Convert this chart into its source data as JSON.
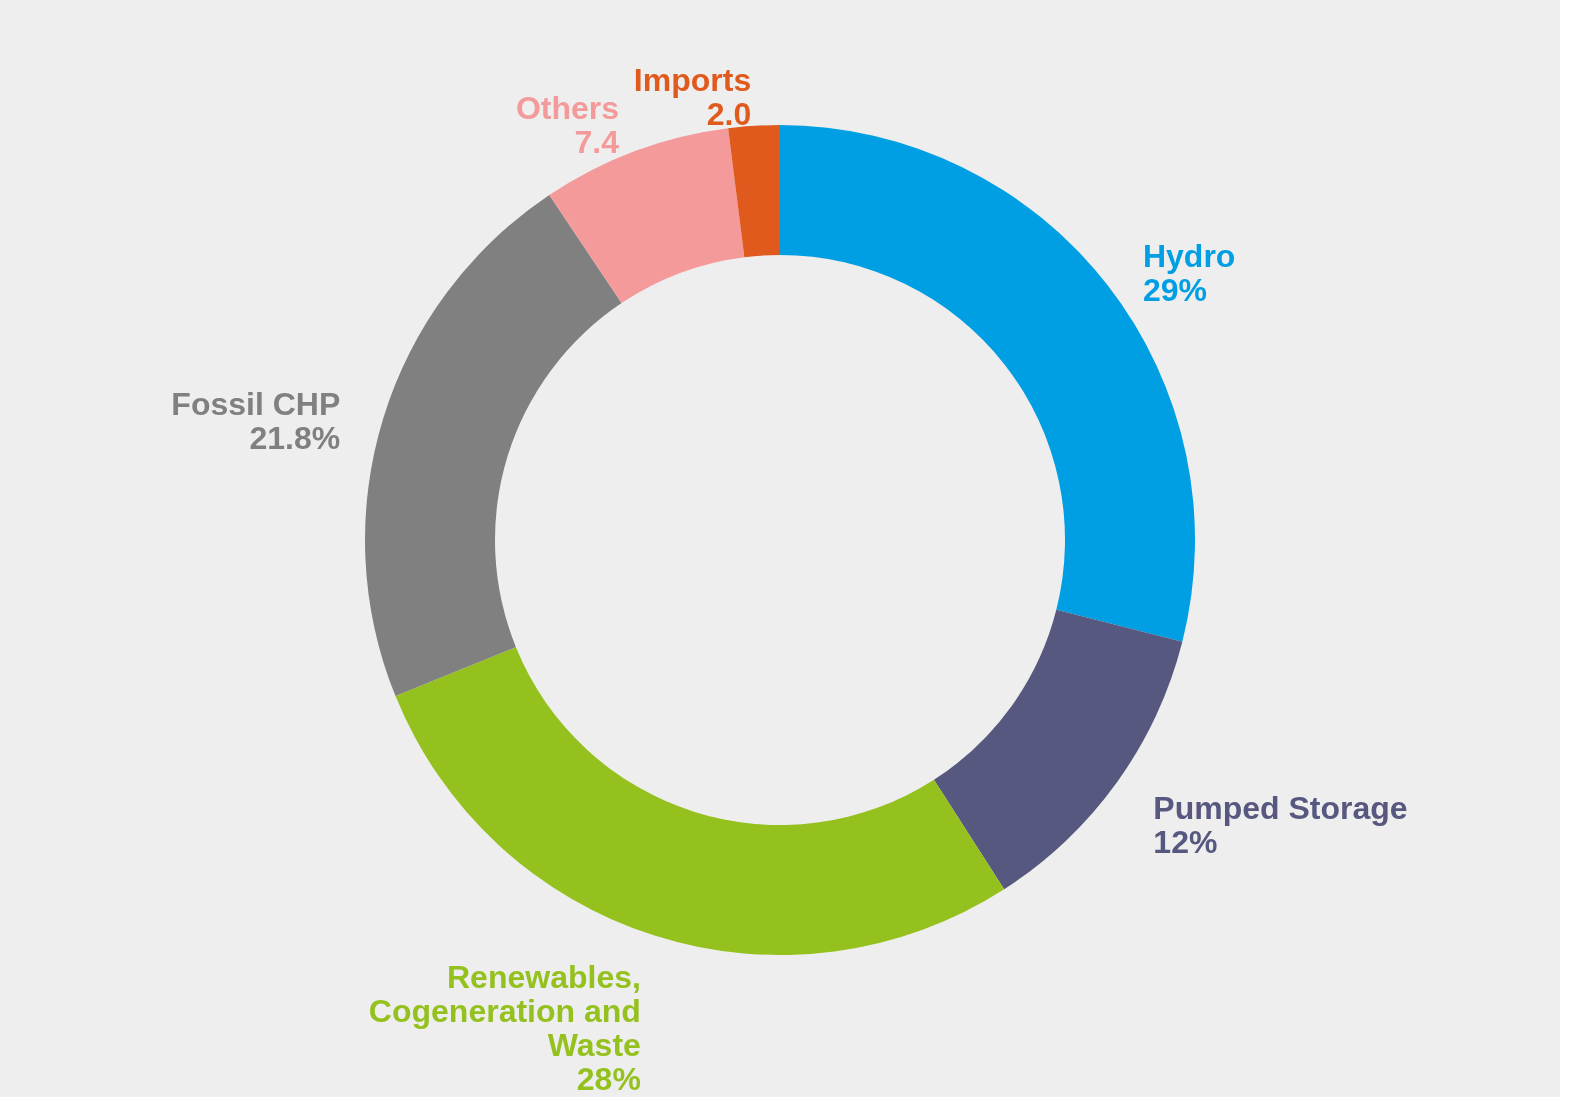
{
  "chart_data": {
    "type": "donut",
    "categories": [
      "Hydro",
      "Pumped Storage",
      "Renewables, Cogeneration and Waste",
      "Fossil CHP",
      "Others",
      "Imports"
    ],
    "values": [
      29,
      12,
      28,
      21.8,
      7.4,
      2.0
    ],
    "value_labels": [
      "29%",
      "12%",
      "28%",
      "21.8%",
      "7.4",
      "2.0"
    ],
    "colors": [
      "#009fe3",
      "#56587f",
      "#95c11f",
      "#808080",
      "#f49a9a",
      "#e05a1e"
    ],
    "legend": false
  }
}
